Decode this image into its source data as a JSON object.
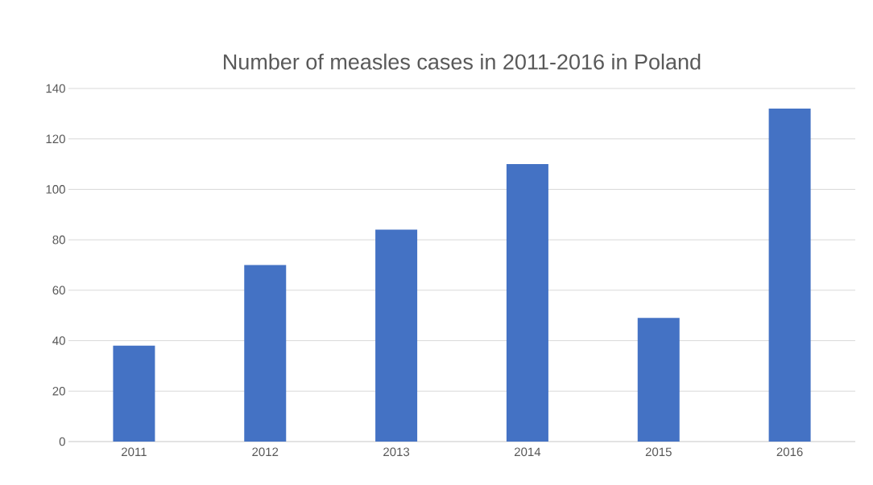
{
  "chart_data": {
    "type": "bar",
    "title": "Number of measles cases in 2011-2016 in Poland",
    "categories": [
      "2011",
      "2012",
      "2013",
      "2014",
      "2015",
      "2016"
    ],
    "values": [
      38,
      70,
      84,
      110,
      49,
      132
    ],
    "color": "#4472c4",
    "ylim": [
      0,
      140
    ],
    "yticks": [
      0,
      20,
      40,
      60,
      80,
      100,
      120,
      140
    ],
    "grid": "y"
  }
}
